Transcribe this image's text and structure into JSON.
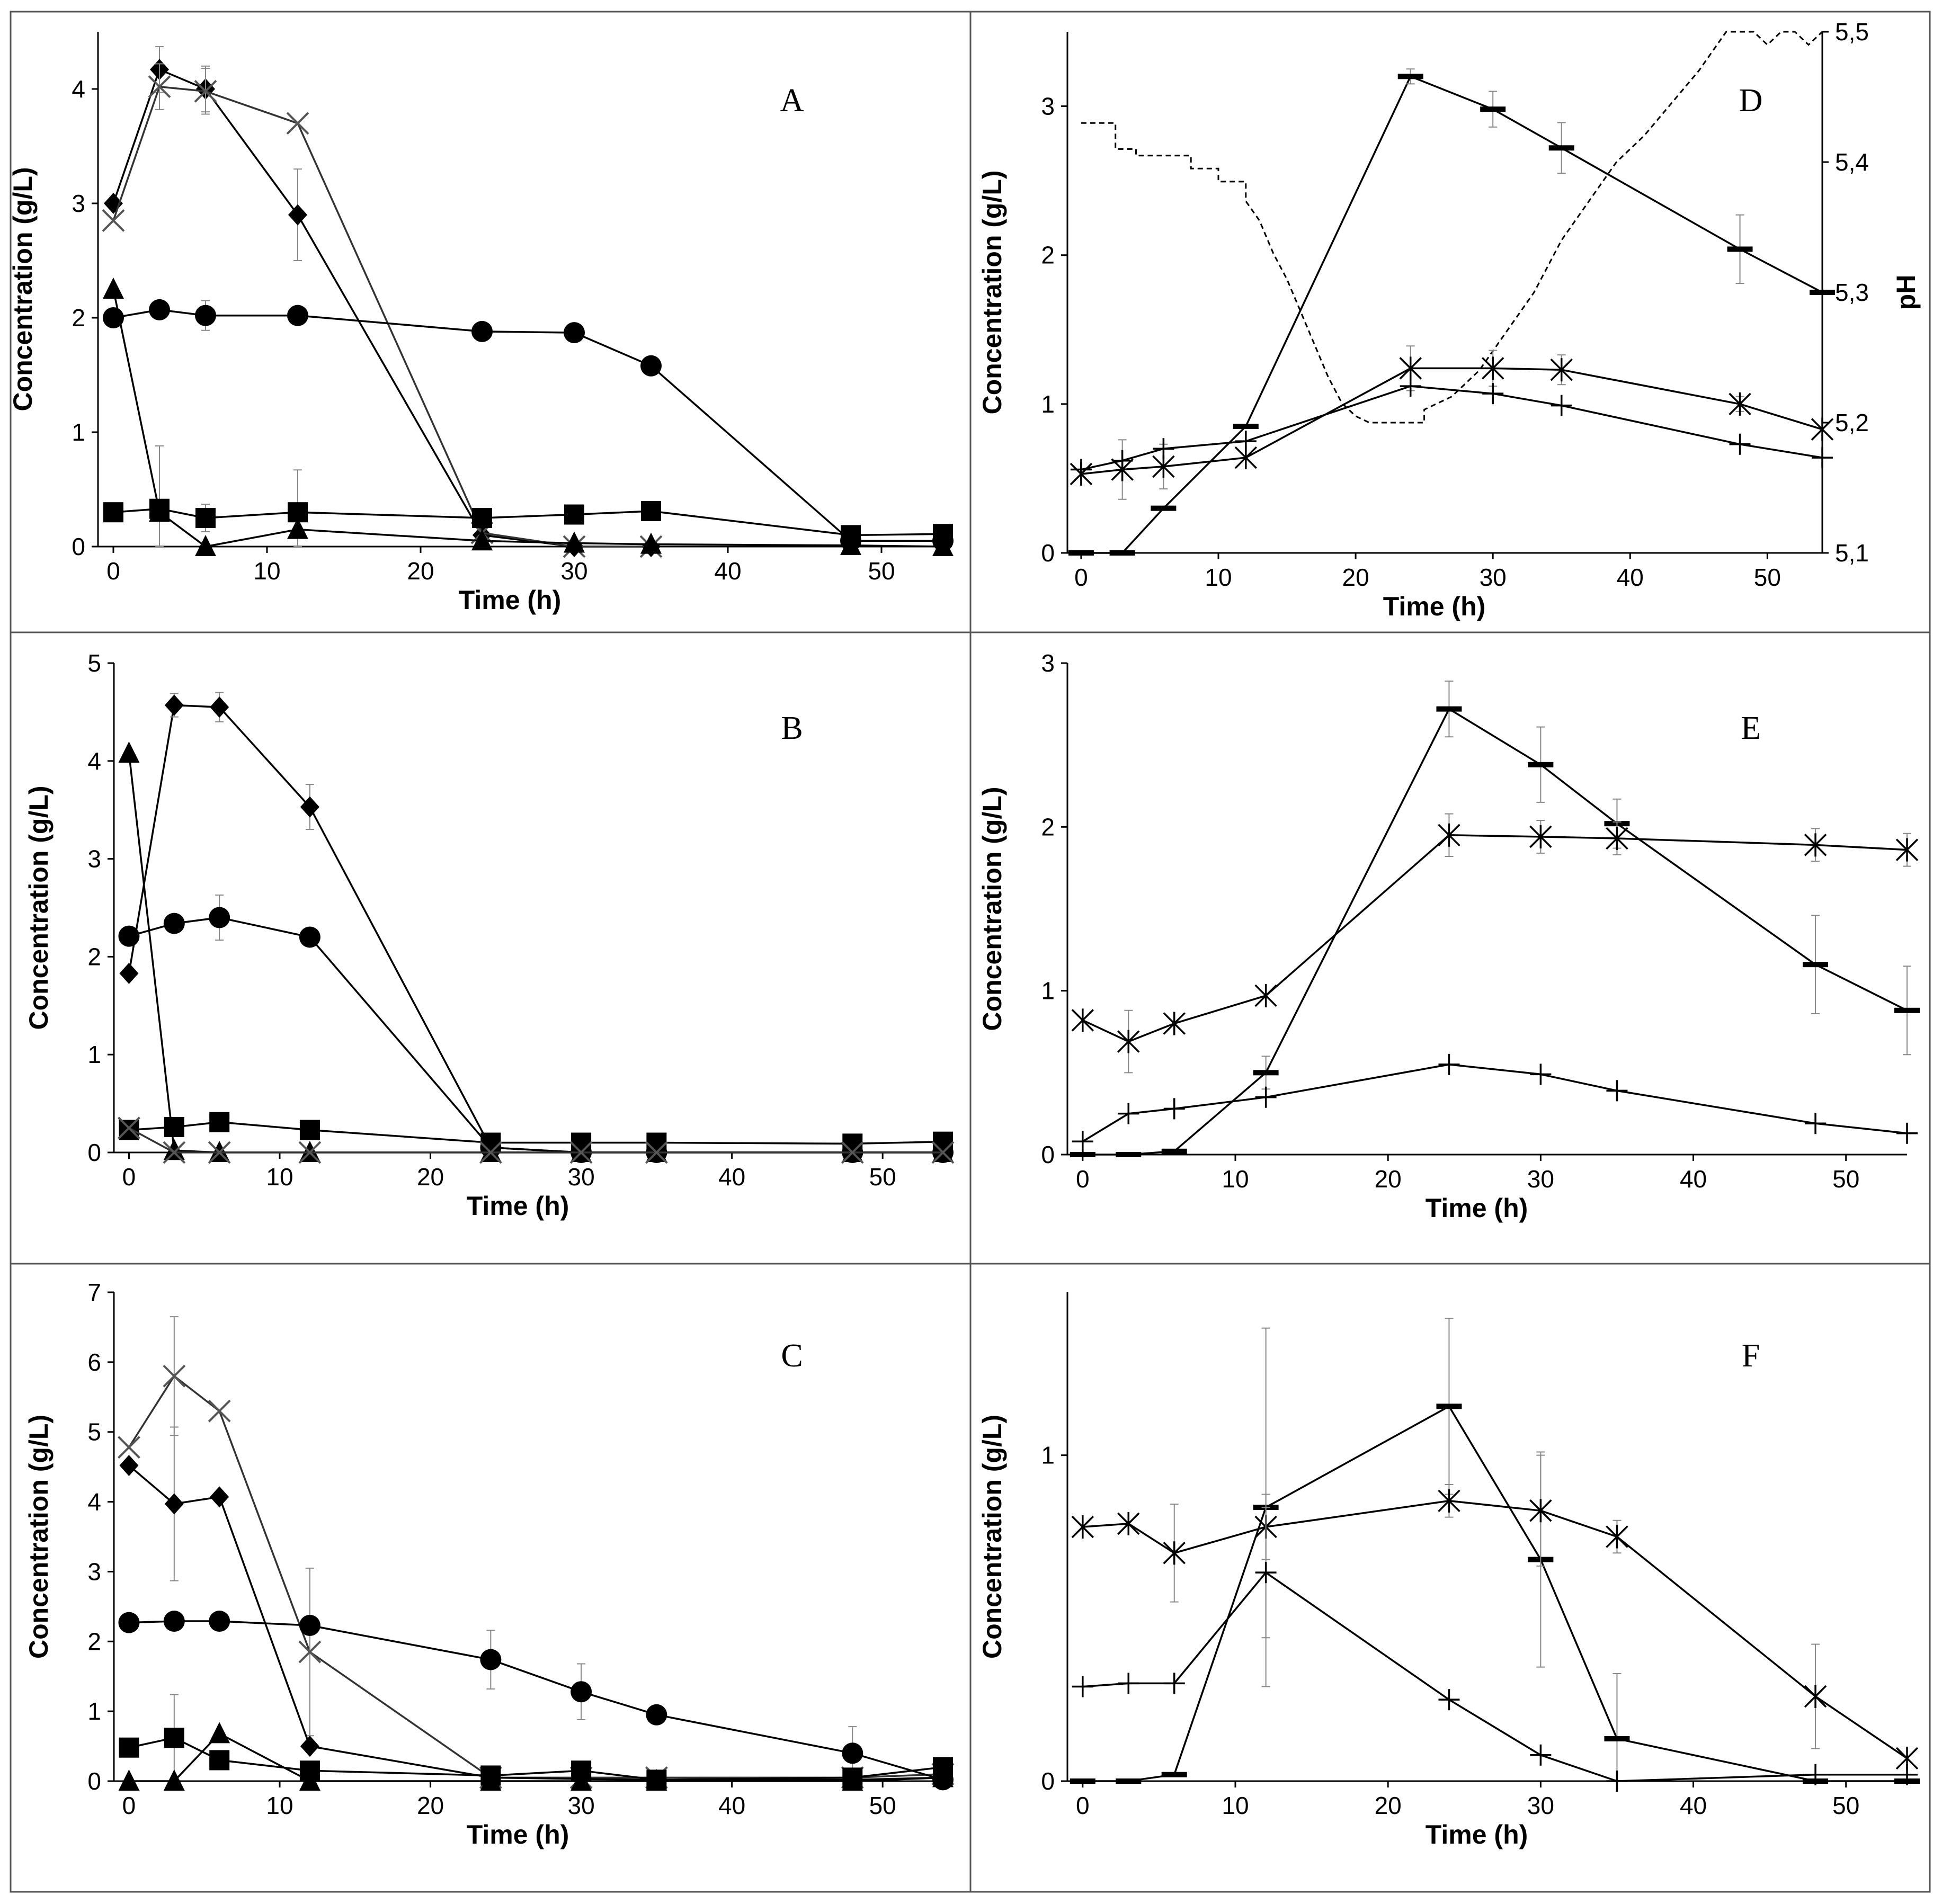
{
  "chart_data": [
    {
      "panel": "A",
      "type": "line",
      "xlabel": "Time (h)",
      "ylabel": "Concentration (g/L)",
      "xlim": [
        -1,
        54
      ],
      "ylim": [
        0,
        4.5
      ],
      "xticks": [
        "0",
        "10",
        "20",
        "30",
        "40",
        "50"
      ],
      "yticks": [
        "0",
        "1",
        "2",
        "3",
        "4"
      ],
      "series": [
        {
          "marker": "diamond",
          "x": [
            0,
            3,
            6,
            12,
            24,
            30,
            35
          ],
          "y": [
            3.0,
            4.17,
            4.0,
            2.9,
            0.1,
            0.0,
            0.0
          ],
          "err": [
            0,
            0.2,
            0.2,
            0.4,
            0,
            0,
            0
          ]
        },
        {
          "marker": "cross",
          "x": [
            0,
            3,
            6,
            12,
            24,
            30,
            35
          ],
          "y": [
            2.85,
            4.02,
            3.98,
            3.7,
            0.12,
            0.0,
            0.0
          ],
          "err": [
            0,
            0.2,
            0.2,
            0,
            0,
            0,
            0
          ]
        },
        {
          "marker": "circle",
          "x": [
            0,
            3,
            6,
            12,
            24,
            30,
            35,
            48,
            54
          ],
          "y": [
            2.0,
            2.07,
            2.02,
            2.02,
            1.88,
            1.87,
            1.58,
            0.05,
            0.05
          ],
          "err": [
            0,
            0.05,
            0.13,
            0,
            0,
            0,
            0,
            0,
            0
          ]
        },
        {
          "marker": "square",
          "x": [
            0,
            3,
            6,
            12,
            24,
            30,
            35,
            48,
            54
          ],
          "y": [
            0.3,
            0.33,
            0.25,
            0.3,
            0.25,
            0.28,
            0.31,
            0.1,
            0.11
          ],
          "err": [
            0,
            0.55,
            0.12,
            0.37,
            0,
            0,
            0,
            0,
            0
          ]
        },
        {
          "marker": "triangle",
          "x": [
            0,
            3,
            6,
            12,
            24,
            30,
            35,
            48,
            54
          ],
          "y": [
            2.25,
            0.3,
            0.0,
            0.15,
            0.05,
            0.03,
            0.02,
            0.01,
            0.0
          ],
          "err": [
            0,
            0,
            0,
            0,
            0,
            0,
            0,
            0,
            0
          ]
        }
      ]
    },
    {
      "panel": "B",
      "type": "line",
      "xlabel": "Time (h)",
      "ylabel": "Concentration (g/L)",
      "xlim": [
        -1,
        54
      ],
      "ylim": [
        0,
        5
      ],
      "xticks": [
        "0",
        "10",
        "20",
        "30",
        "40",
        "50"
      ],
      "yticks": [
        "0",
        "1",
        "2",
        "3",
        "4",
        "5"
      ],
      "series": [
        {
          "marker": "diamond",
          "x": [
            0,
            3,
            6,
            12,
            24,
            30,
            35,
            48,
            54
          ],
          "y": [
            1.83,
            4.57,
            4.55,
            3.53,
            0.05,
            0.0,
            0.0,
            0.0,
            0.0
          ],
          "err": [
            0,
            0.12,
            0.15,
            0.23,
            0,
            0,
            0,
            0,
            0
          ]
        },
        {
          "marker": "circle",
          "x": [
            0,
            3,
            6,
            12,
            24,
            30,
            35,
            48,
            54
          ],
          "y": [
            2.21,
            2.34,
            2.4,
            2.2,
            0.05,
            0.0,
            0.0,
            0.0,
            0.0
          ],
          "err": [
            0,
            0.05,
            0.23,
            0,
            0,
            0,
            0,
            0,
            0
          ]
        },
        {
          "marker": "square",
          "x": [
            0,
            3,
            6,
            12,
            24,
            30,
            35,
            48,
            54
          ],
          "y": [
            0.23,
            0.26,
            0.31,
            0.23,
            0.1,
            0.1,
            0.1,
            0.09,
            0.11
          ],
          "err": [
            0,
            0,
            0,
            0,
            0,
            0,
            0,
            0,
            0
          ]
        },
        {
          "marker": "triangle",
          "x": [
            0,
            3,
            6,
            12,
            24,
            30,
            35,
            48,
            54
          ],
          "y": [
            4.08,
            0.02,
            0.0,
            0.0,
            0.0,
            0.0,
            0.0,
            0.0,
            0.0
          ],
          "err": [
            0,
            0,
            0,
            0,
            0,
            0,
            0,
            0,
            0
          ]
        },
        {
          "marker": "cross",
          "x": [
            0,
            3,
            6,
            12,
            24,
            30,
            35,
            48,
            54
          ],
          "y": [
            0.25,
            0.0,
            0.0,
            0.0,
            0.0,
            0.0,
            0.0,
            0.0,
            0.0
          ],
          "err": [
            0,
            0,
            0,
            0,
            0,
            0,
            0,
            0,
            0
          ]
        }
      ]
    },
    {
      "panel": "C",
      "type": "line",
      "xlabel": "Time (h)",
      "ylabel": "Concentration (g/L)",
      "xlim": [
        -1,
        54
      ],
      "ylim": [
        0,
        7
      ],
      "xticks": [
        "0",
        "10",
        "20",
        "30",
        "40",
        "50"
      ],
      "yticks": [
        "0",
        "1",
        "2",
        "3",
        "4",
        "5",
        "6",
        "7"
      ],
      "series": [
        {
          "marker": "cross",
          "x": [
            0,
            3,
            6,
            12,
            24,
            30,
            35,
            48,
            54
          ],
          "y": [
            4.78,
            5.8,
            5.3,
            1.85,
            0.05,
            0.05,
            0.05,
            0.05,
            0.1
          ],
          "err": [
            0,
            0.85,
            0,
            1.2,
            0,
            0,
            0,
            0,
            0
          ]
        },
        {
          "marker": "diamond",
          "x": [
            0,
            3,
            6,
            12,
            24,
            30,
            35,
            48,
            54
          ],
          "y": [
            4.52,
            3.97,
            4.07,
            0.5,
            0.05,
            0.03,
            0.02,
            0.02,
            0.05
          ],
          "err": [
            0,
            1.1,
            0,
            0,
            0,
            0,
            0,
            0,
            0
          ]
        },
        {
          "marker": "circle",
          "x": [
            0,
            3,
            6,
            12,
            24,
            30,
            35,
            48,
            54
          ],
          "y": [
            2.27,
            2.29,
            2.29,
            2.23,
            1.74,
            1.28,
            0.95,
            0.4,
            0.02
          ],
          "err": [
            0,
            0,
            0,
            0,
            0.42,
            0.4,
            0,
            0.38,
            0
          ]
        },
        {
          "marker": "square",
          "x": [
            0,
            3,
            6,
            12,
            24,
            30,
            35,
            48,
            54
          ],
          "y": [
            0.48,
            0.62,
            0.3,
            0.15,
            0.08,
            0.15,
            0.02,
            0.05,
            0.2
          ],
          "err": [
            0,
            0.62,
            0,
            0,
            0,
            0,
            0,
            0,
            0
          ]
        },
        {
          "marker": "triangle",
          "x": [
            0,
            3,
            6,
            12,
            24,
            30,
            35,
            48,
            54
          ],
          "y": [
            0.0,
            0.0,
            0.68,
            0.0,
            0.0,
            0.0,
            0.0,
            0.0,
            0.05
          ],
          "err": [
            0,
            0,
            0,
            0,
            0,
            0,
            0,
            0,
            0
          ]
        }
      ]
    },
    {
      "panel": "D",
      "type": "line",
      "xlabel": "Time (h)",
      "ylabel": "Concentration (g/L)",
      "y2label": "pH",
      "xlim": [
        -1,
        54
      ],
      "ylim": [
        0,
        3.5
      ],
      "y2lim": [
        5.1,
        5.5
      ],
      "xticks": [
        "0",
        "10",
        "20",
        "30",
        "40",
        "50"
      ],
      "yticks": [
        "0",
        "1",
        "2",
        "3"
      ],
      "y2ticks": [
        "5,1",
        "5,2",
        "5,3",
        "5,4",
        "5,5"
      ],
      "series": [
        {
          "marker": "dash",
          "x": [
            0,
            3,
            6,
            12,
            24,
            30,
            35,
            48,
            54
          ],
          "y": [
            0.0,
            0.0,
            0.3,
            0.85,
            3.2,
            2.98,
            2.72,
            2.04,
            1.75
          ],
          "err": [
            0,
            0,
            0,
            0,
            0.05,
            0.12,
            0.17,
            0.23,
            0
          ]
        },
        {
          "marker": "asterisk",
          "x": [
            0,
            3,
            6,
            12,
            24,
            30,
            35,
            48,
            54
          ],
          "y": [
            0.53,
            0.56,
            0.58,
            0.64,
            1.24,
            1.24,
            1.23,
            1.0,
            0.83
          ],
          "err": [
            0,
            0.2,
            0.15,
            0,
            0.15,
            0.12,
            0.1,
            0.05,
            0
          ]
        },
        {
          "marker": "plus",
          "x": [
            0,
            3,
            6,
            12,
            24,
            30,
            35,
            48,
            54
          ],
          "y": [
            0.56,
            0.62,
            0.7,
            0.75,
            1.12,
            1.07,
            0.99,
            0.73,
            0.64
          ],
          "err": [
            0,
            0,
            0,
            0,
            0,
            0,
            0,
            0,
            0
          ]
        }
      ],
      "ph_curve": {
        "x": [
          0,
          2.5,
          2.5,
          4,
          4,
          8,
          8,
          10,
          10,
          12,
          12,
          13,
          14,
          15,
          16,
          17,
          18,
          19,
          20,
          21,
          22,
          25,
          25,
          27,
          29,
          31,
          33,
          35,
          37,
          39,
          41,
          43,
          45,
          47,
          48,
          49,
          50,
          51,
          52,
          53,
          54
        ],
        "y": [
          5.43,
          5.43,
          5.41,
          5.41,
          5.405,
          5.405,
          5.395,
          5.395,
          5.385,
          5.385,
          5.37,
          5.355,
          5.33,
          5.31,
          5.285,
          5.26,
          5.235,
          5.215,
          5.205,
          5.2,
          5.2,
          5.2,
          5.21,
          5.22,
          5.24,
          5.27,
          5.3,
          5.34,
          5.37,
          5.4,
          5.42,
          5.445,
          5.47,
          5.5,
          5.5,
          5.51,
          5.49,
          5.5,
          5.51,
          5.49,
          5.5
        ]
      }
    },
    {
      "panel": "E",
      "type": "line",
      "xlabel": "Time (h)",
      "ylabel": "Concentration (g/L)",
      "xlim": [
        -1,
        54
      ],
      "ylim": [
        0,
        3
      ],
      "xticks": [
        "0",
        "10",
        "20",
        "30",
        "40",
        "50"
      ],
      "yticks": [
        "0",
        "1",
        "2",
        "3"
      ],
      "series": [
        {
          "marker": "dash",
          "x": [
            0,
            3,
            6,
            12,
            24,
            30,
            35,
            48,
            54
          ],
          "y": [
            0.0,
            0.0,
            0.02,
            0.5,
            2.72,
            2.38,
            2.02,
            1.16,
            0.88
          ],
          "err": [
            0,
            0,
            0,
            0.1,
            0.17,
            0.23,
            0.15,
            0.3,
            0.27
          ]
        },
        {
          "marker": "asterisk",
          "x": [
            0,
            3,
            6,
            12,
            24,
            30,
            35,
            48,
            54
          ],
          "y": [
            0.82,
            0.69,
            0.8,
            0.97,
            1.95,
            1.94,
            1.93,
            1.89,
            1.86
          ],
          "err": [
            0,
            0.19,
            0,
            0,
            0.13,
            0.1,
            0.1,
            0.1,
            0.1
          ]
        },
        {
          "marker": "plus",
          "x": [
            0,
            3,
            6,
            12,
            24,
            30,
            35,
            48,
            54
          ],
          "y": [
            0.08,
            0.25,
            0.28,
            0.35,
            0.55,
            0.49,
            0.39,
            0.19,
            0.13
          ],
          "err": [
            0,
            0,
            0,
            0,
            0,
            0,
            0,
            0,
            0
          ]
        }
      ]
    },
    {
      "panel": "F",
      "type": "line",
      "xlabel": "Time (h)",
      "ylabel": "Concentration (g/L)",
      "xlim": [
        -1,
        54
      ],
      "ylim": [
        0,
        1.5
      ],
      "xticks": [
        "0",
        "10",
        "20",
        "30",
        "40",
        "50"
      ],
      "yticks": [
        "0",
        "1"
      ],
      "series": [
        {
          "marker": "dash",
          "x": [
            0,
            3,
            6,
            12,
            24,
            30,
            35,
            48,
            54
          ],
          "y": [
            0.0,
            0.0,
            0.02,
            0.84,
            1.15,
            0.68,
            0.13,
            0.0,
            0.0
          ],
          "err": [
            0,
            0,
            0,
            0.55,
            0.27,
            0.33,
            0.2,
            0,
            0
          ]
        },
        {
          "marker": "asterisk",
          "x": [
            0,
            3,
            6,
            12,
            24,
            30,
            35,
            48,
            54
          ],
          "y": [
            0.78,
            0.79,
            0.7,
            0.78,
            0.86,
            0.83,
            0.75,
            0.26,
            0.07
          ],
          "err": [
            0,
            0,
            0.15,
            0.1,
            0.05,
            0.17,
            0.05,
            0.16,
            0
          ]
        },
        {
          "marker": "plus",
          "x": [
            0,
            3,
            6,
            12,
            24,
            30,
            35,
            48,
            54
          ],
          "y": [
            0.29,
            0.3,
            0.3,
            0.64,
            0.25,
            0.08,
            0.0,
            0.02,
            0.02
          ],
          "err": [
            0,
            0,
            0,
            0.2,
            0,
            0,
            0,
            0,
            0
          ]
        }
      ]
    }
  ]
}
